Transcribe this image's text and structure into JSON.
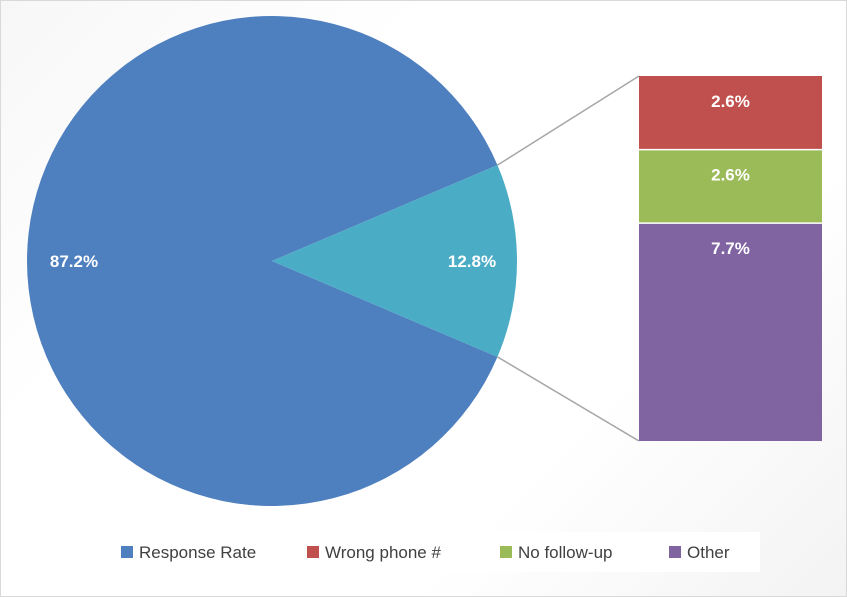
{
  "chart_data": {
    "type": "pie",
    "subtype": "bar-of-pie",
    "title": "",
    "pie": {
      "slices": [
        {
          "name": "Response Rate",
          "value": 87.2,
          "label": "87.2%",
          "color": "#4E7FBF"
        },
        {
          "name": "",
          "value": 12.8,
          "label": "12.8%",
          "color": "#4BACC6"
        }
      ]
    },
    "bar": {
      "segments": [
        {
          "name": "Wrong phone #",
          "value": 2.6,
          "label": "2.6%",
          "color": "#C0504D"
        },
        {
          "name": "No follow-up",
          "value": 2.6,
          "label": "2.6%",
          "color": "#9BBB59"
        },
        {
          "name": "Other",
          "value": 7.7,
          "label": "7.7%",
          "color": "#8064A2"
        }
      ]
    },
    "legend": {
      "position": "bottom",
      "entries": [
        {
          "name": "Response Rate",
          "color": "#4E7FBF"
        },
        {
          "name": "Wrong phone #",
          "color": "#C0504D"
        },
        {
          "name": "No follow-up",
          "color": "#9BBB59"
        },
        {
          "name": "Other",
          "color": "#8064A2"
        }
      ]
    },
    "connector_color": "#A6A6A6"
  }
}
